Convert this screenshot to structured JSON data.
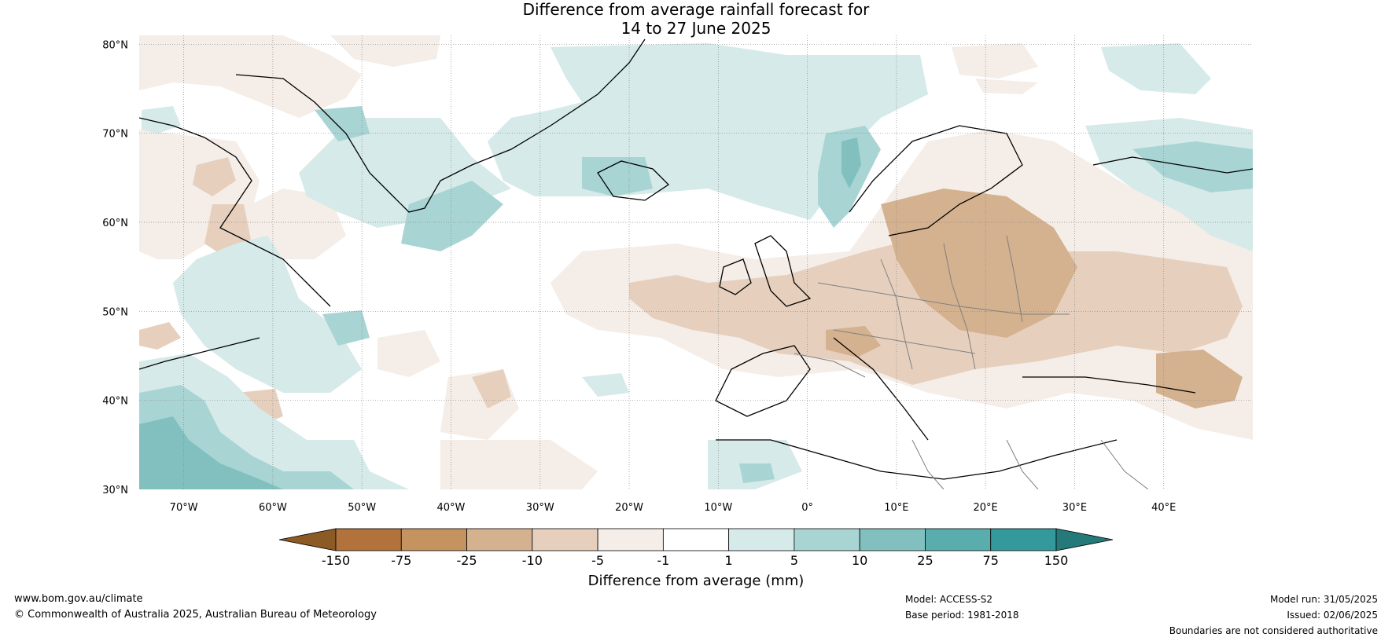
{
  "title": {
    "line1": "Difference from average rainfall forecast for",
    "line2": "14 to 27 June 2025"
  },
  "axes": {
    "lat_labels": [
      "80°N",
      "70°N",
      "60°N",
      "50°N",
      "40°N",
      "30°N"
    ],
    "lon_labels": [
      "70°W",
      "60°W",
      "50°W",
      "40°W",
      "30°W",
      "20°W",
      "10°W",
      "0°",
      "10°E",
      "20°E",
      "30°E",
      "40°E"
    ]
  },
  "colorbar": {
    "title": "Difference from average (mm)",
    "tick_labels": [
      "-150",
      "-75",
      "-25",
      "-10",
      "-5",
      "-1",
      "1",
      "5",
      "10",
      "25",
      "75",
      "150"
    ],
    "colors": [
      "#8c5a24",
      "#b1723c",
      "#c4935f",
      "#d4b18f",
      "#e6d0bd",
      "#f5ede7",
      "#ffffff",
      "#d5eae9",
      "#a9d4d4",
      "#82c0c0",
      "#5aadad",
      "#34999a",
      "#247979"
    ]
  },
  "footer": {
    "website": "www.bom.gov.au/climate",
    "copyright": "© Commonwealth of Australia 2025, Australian Bureau of Meteorology",
    "model": "Model: ACCESS-S2",
    "base_period": "Base period: 1981-2018",
    "model_run": "Model run: 31/05/2025",
    "issued": "Issued: 02/06/2025",
    "disclaimer": "Boundaries are not considered authoritative"
  }
}
